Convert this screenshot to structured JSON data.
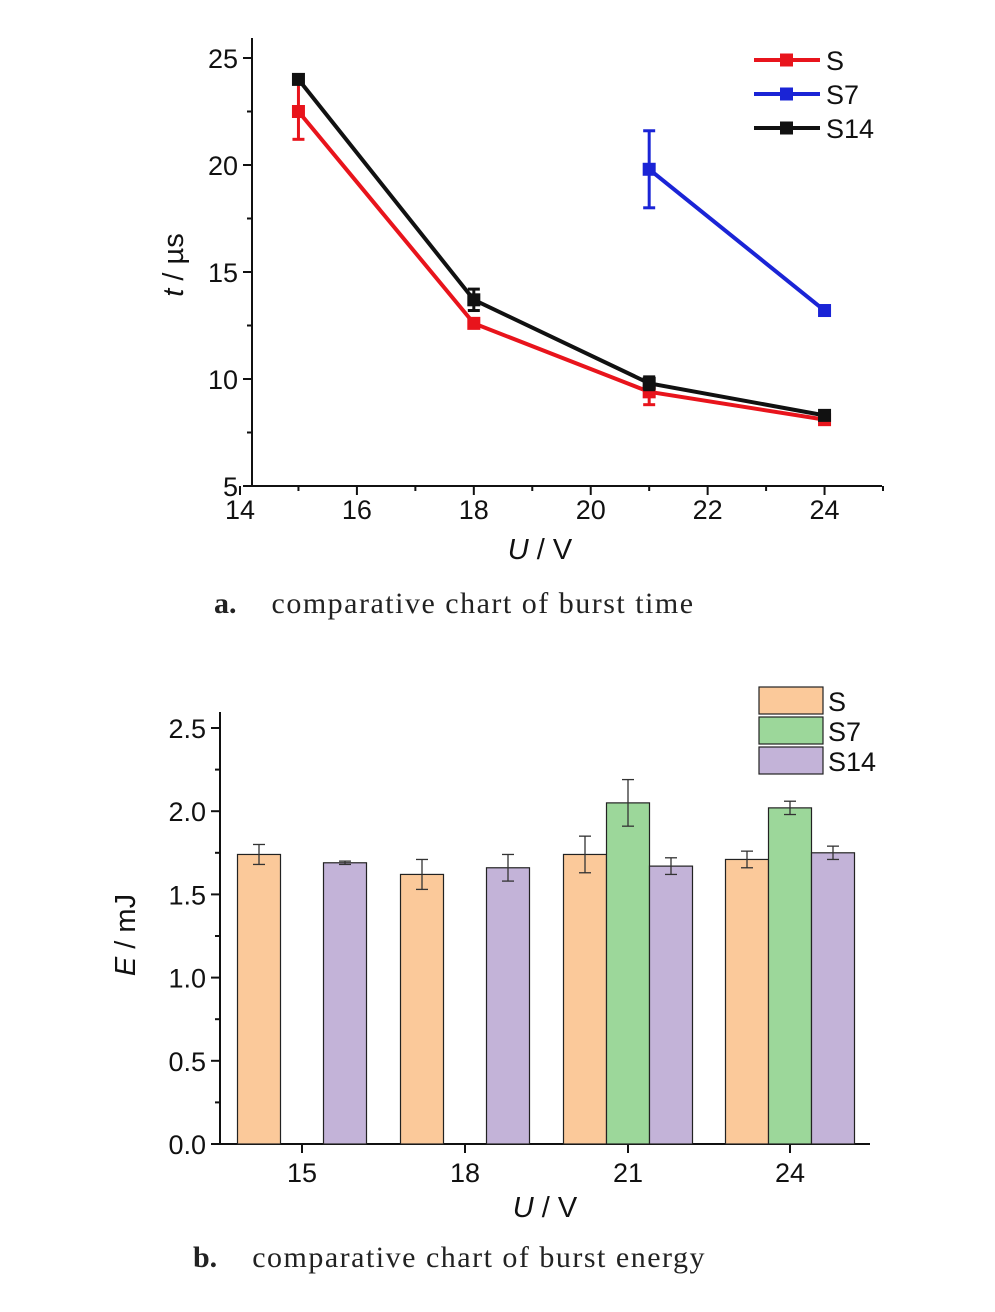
{
  "chart_data": [
    {
      "type": "line",
      "xlabel": "U / V",
      "xlabel_var": "U",
      "xlabel_unit": " / V",
      "ylabel": "t / µs",
      "ylabel_var": "t",
      "ylabel_unit": " / µs",
      "xlim": [
        14,
        25
      ],
      "ylim": [
        5,
        26
      ],
      "xticks": [
        14,
        16,
        18,
        20,
        22,
        24
      ],
      "yticks": [
        5,
        10,
        15,
        20,
        25
      ],
      "legend_position": "top-right",
      "caption_letter": "a.",
      "caption_text": "comparative chart of burst time",
      "series": [
        {
          "name": "S",
          "color": "#e8141c",
          "x": [
            15,
            18,
            21,
            24
          ],
          "y": [
            22.5,
            12.6,
            9.4,
            8.1
          ],
          "err": [
            1.3,
            0.2,
            0.6,
            0.2
          ]
        },
        {
          "name": "S7",
          "color": "#1a24d6",
          "x": [
            21,
            24
          ],
          "y": [
            19.8,
            13.2
          ],
          "err": [
            1.8,
            0.2
          ]
        },
        {
          "name": "S14",
          "color": "#111111",
          "x": [
            15,
            18,
            21,
            24
          ],
          "y": [
            24.0,
            13.7,
            9.8,
            8.3
          ],
          "err": [
            0.2,
            0.5,
            0.3,
            0.2
          ]
        }
      ]
    },
    {
      "type": "bar",
      "xlabel": "U / V",
      "xlabel_var": "U",
      "xlabel_unit": " / V",
      "ylabel": "E / mJ",
      "ylabel_var": "E",
      "ylabel_unit": " / mJ",
      "ylim": [
        0,
        2.6
      ],
      "yticks": [
        "0.0",
        "0.5",
        "1.0",
        "1.5",
        "2.0",
        "2.5"
      ],
      "categories": [
        "15",
        "18",
        "21",
        "24"
      ],
      "legend_position": "top-right",
      "caption_letter": "b.",
      "caption_text": "comparative chart of burst energy",
      "series": [
        {
          "name": "S",
          "color": "#fbc99a",
          "values": [
            1.74,
            1.62,
            1.74,
            1.71
          ],
          "err": [
            0.06,
            0.09,
            0.11,
            0.05
          ]
        },
        {
          "name": "S7",
          "color": "#9cd79a",
          "values": [
            null,
            null,
            2.05,
            2.02
          ],
          "err": [
            null,
            null,
            0.14,
            0.04
          ]
        },
        {
          "name": "S14",
          "color": "#c3b3d8",
          "values": [
            1.69,
            1.66,
            1.67,
            1.75
          ],
          "err": [
            0.01,
            0.08,
            0.05,
            0.04
          ]
        }
      ]
    }
  ]
}
